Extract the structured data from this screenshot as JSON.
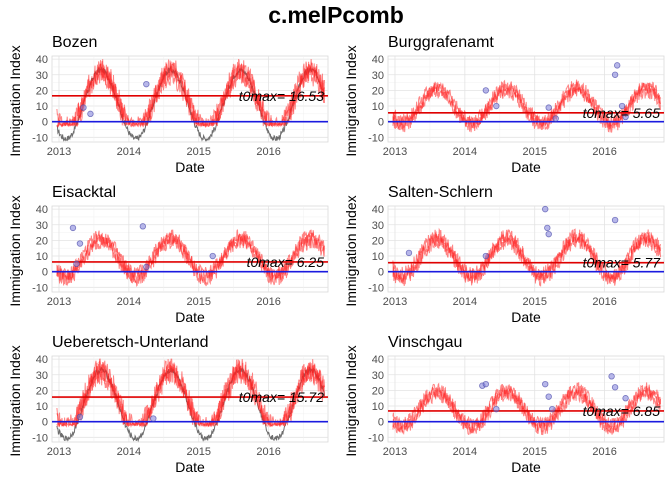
{
  "title": "c.melPcomb",
  "chart_data": [
    {
      "type": "line",
      "title": "Bozen",
      "xlabel": "Date",
      "ylabel": "Immigration Index",
      "x_ticks": [
        "2013",
        "2014",
        "2015",
        "2016"
      ],
      "xlim": [
        2012.9,
        2016.85
      ],
      "ylim": [
        -13,
        42
      ],
      "y_ticks": [
        -10,
        0,
        10,
        20,
        30,
        40
      ],
      "amp": 19,
      "mean": 13,
      "gray_drop": true,
      "threshold_red": 16.53,
      "threshold_blue": 0,
      "annotation": "t0max= 16.53",
      "points": [
        {
          "x": 2013.35,
          "y": 9
        },
        {
          "x": 2013.45,
          "y": 5
        },
        {
          "x": 2014.25,
          "y": 24
        }
      ],
      "series": [
        {
          "name": "",
          "color": "#ff2020"
        },
        {
          "name": "",
          "color": "#555555"
        }
      ]
    },
    {
      "type": "line",
      "title": "Burggrafenamt",
      "xlabel": "Date",
      "ylabel": "Immigration Index",
      "x_ticks": [
        "2013",
        "2014",
        "2015",
        "2016"
      ],
      "xlim": [
        2012.9,
        2016.85
      ],
      "ylim": [
        -13,
        42
      ],
      "y_ticks": [
        -10,
        0,
        10,
        20,
        30,
        40
      ],
      "amp": 11,
      "mean": 10,
      "gray_drop": false,
      "threshold_red": 5.65,
      "threshold_blue": 0,
      "annotation": "t0max= 5.65",
      "points": [
        {
          "x": 2014.3,
          "y": 20
        },
        {
          "x": 2014.45,
          "y": 10
        },
        {
          "x": 2015.2,
          "y": 9
        },
        {
          "x": 2015.3,
          "y": 2
        },
        {
          "x": 2016.15,
          "y": 30
        },
        {
          "x": 2016.18,
          "y": 36
        },
        {
          "x": 2016.25,
          "y": 10
        },
        {
          "x": 2016.3,
          "y": 3
        }
      ],
      "series": [
        {
          "name": "",
          "color": "#ff2020"
        }
      ]
    },
    {
      "type": "line",
      "title": "Eisacktal",
      "xlabel": "Date",
      "ylabel": "Immigration Index",
      "x_ticks": [
        "2013",
        "2014",
        "2015",
        "2016"
      ],
      "xlim": [
        2012.9,
        2016.85
      ],
      "ylim": [
        -13,
        42
      ],
      "y_ticks": [
        -10,
        0,
        10,
        20,
        30,
        40
      ],
      "amp": 12,
      "mean": 9,
      "gray_drop": false,
      "threshold_red": 6.25,
      "threshold_blue": 0,
      "annotation": "t0max= 6.25",
      "points": [
        {
          "x": 2013.2,
          "y": 28
        },
        {
          "x": 2013.3,
          "y": 18
        },
        {
          "x": 2013.25,
          "y": 5
        },
        {
          "x": 2014.2,
          "y": 29
        },
        {
          "x": 2014.25,
          "y": 3
        },
        {
          "x": 2015.2,
          "y": 10
        }
      ],
      "series": [
        {
          "name": "",
          "color": "#ff2020"
        }
      ]
    },
    {
      "type": "line",
      "title": "Salten-Schlern",
      "xlabel": "Date",
      "ylabel": "Immigration Index",
      "x_ticks": [
        "2013",
        "2014",
        "2015",
        "2016"
      ],
      "xlim": [
        2012.9,
        2016.85
      ],
      "ylim": [
        -13,
        42
      ],
      "y_ticks": [
        -10,
        0,
        10,
        20,
        30,
        40
      ],
      "amp": 12,
      "mean": 9,
      "gray_drop": false,
      "threshold_red": 5.77,
      "threshold_blue": 0,
      "annotation": "t0max= 5.77",
      "points": [
        {
          "x": 2013.2,
          "y": 12
        },
        {
          "x": 2014.3,
          "y": 10
        },
        {
          "x": 2015.15,
          "y": 40
        },
        {
          "x": 2015.18,
          "y": 28
        },
        {
          "x": 2015.2,
          "y": 24
        },
        {
          "x": 2016.15,
          "y": 33
        }
      ],
      "series": [
        {
          "name": "",
          "color": "#ff2020"
        }
      ]
    },
    {
      "type": "line",
      "title": "Ueberetsch-Unterland",
      "xlabel": "Date",
      "ylabel": "Immigration Index",
      "x_ticks": [
        "2013",
        "2014",
        "2015",
        "2016"
      ],
      "xlim": [
        2012.9,
        2016.85
      ],
      "ylim": [
        -13,
        42
      ],
      "y_ticks": [
        -10,
        0,
        10,
        20,
        30,
        40
      ],
      "amp": 19,
      "mean": 13,
      "gray_drop": true,
      "threshold_red": 15.72,
      "threshold_blue": 0,
      "annotation": "t0max= 15.72",
      "points": [
        {
          "x": 2013.3,
          "y": 3
        },
        {
          "x": 2014.35,
          "y": 2
        }
      ],
      "series": [
        {
          "name": "",
          "color": "#ff2020"
        },
        {
          "name": "",
          "color": "#555555"
        }
      ]
    },
    {
      "type": "line",
      "title": "Vinschgau",
      "xlabel": "Date",
      "ylabel": "Immigration Index",
      "x_ticks": [
        "2013",
        "2014",
        "2015",
        "2016"
      ],
      "xlim": [
        2012.9,
        2016.85
      ],
      "ylim": [
        -13,
        42
      ],
      "y_ticks": [
        -10,
        0,
        10,
        20,
        30,
        40
      ],
      "amp": 11,
      "mean": 8,
      "gray_drop": false,
      "threshold_red": 6.85,
      "threshold_blue": 0,
      "annotation": "t0max= 6.85",
      "points": [
        {
          "x": 2014.25,
          "y": 23
        },
        {
          "x": 2014.3,
          "y": 24
        },
        {
          "x": 2014.45,
          "y": 8
        },
        {
          "x": 2015.15,
          "y": 24
        },
        {
          "x": 2015.2,
          "y": 16
        },
        {
          "x": 2015.25,
          "y": 8
        },
        {
          "x": 2016.1,
          "y": 29
        },
        {
          "x": 2016.15,
          "y": 22
        },
        {
          "x": 2016.3,
          "y": 15
        }
      ],
      "series": [
        {
          "name": "",
          "color": "#ff2020"
        }
      ]
    }
  ]
}
